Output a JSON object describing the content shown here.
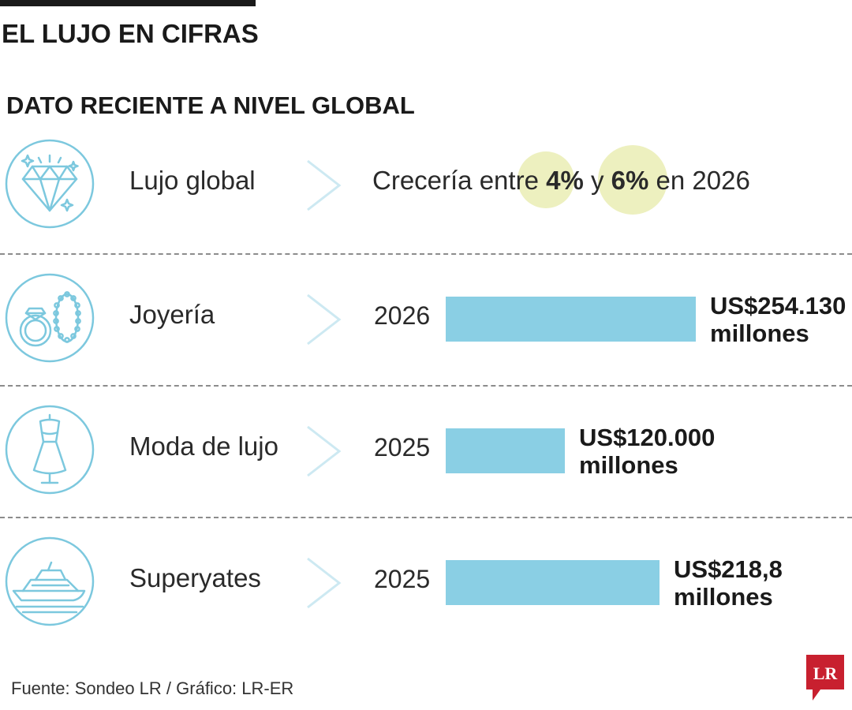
{
  "header": {
    "title": "EL LUJO EN CIFRAS",
    "subtitle": "DATO RECIENTE A NIVEL GLOBAL"
  },
  "rows": [
    {
      "label": "Lujo global",
      "icon": "diamond-icon",
      "text_before": "Crecería entre",
      "low": "4%",
      "connector": "y",
      "high": "6%",
      "text_after": "en 2026"
    },
    {
      "label": "Joyería",
      "icon": "ring-necklace-icon",
      "year": "2026",
      "value_line1": "US$254.130",
      "value_line2": "millones"
    },
    {
      "label": "Moda de lujo",
      "icon": "dress-icon",
      "year": "2025",
      "value_line1": "US$120.000",
      "value_line2": "millones"
    },
    {
      "label": "Superyates",
      "icon": "yacht-icon",
      "year": "2025",
      "value_line1": "US$218,8",
      "value_line2": "millones"
    }
  ],
  "chart_data": {
    "type": "bar",
    "orientation": "horizontal",
    "categories": [
      "Joyería",
      "Moda de lujo",
      "Superyates"
    ],
    "years": [
      "2026",
      "2025",
      "2025"
    ],
    "values": [
      254130,
      120000,
      218.8
    ],
    "value_labels": [
      "US$254.130 millones",
      "US$120.000 millones",
      "US$218,8 millones"
    ],
    "bar_fraction": [
      1.0,
      0.475,
      0.855
    ],
    "bar_color": "#8acfe4",
    "title": "EL LUJO EN CIFRAS",
    "subtitle": "DATO RECIENTE A NIVEL GLOBAL",
    "xlabel": "",
    "ylabel": ""
  },
  "colors": {
    "bar": "#8acfe4",
    "icon_stroke": "#7cc8de",
    "highlight": "#edf0bf",
    "logo": "#c8202f"
  },
  "footer": {
    "source": "Fuente: Sondeo LR  / Gráfico: LR-ER",
    "logo_text": "LR"
  }
}
